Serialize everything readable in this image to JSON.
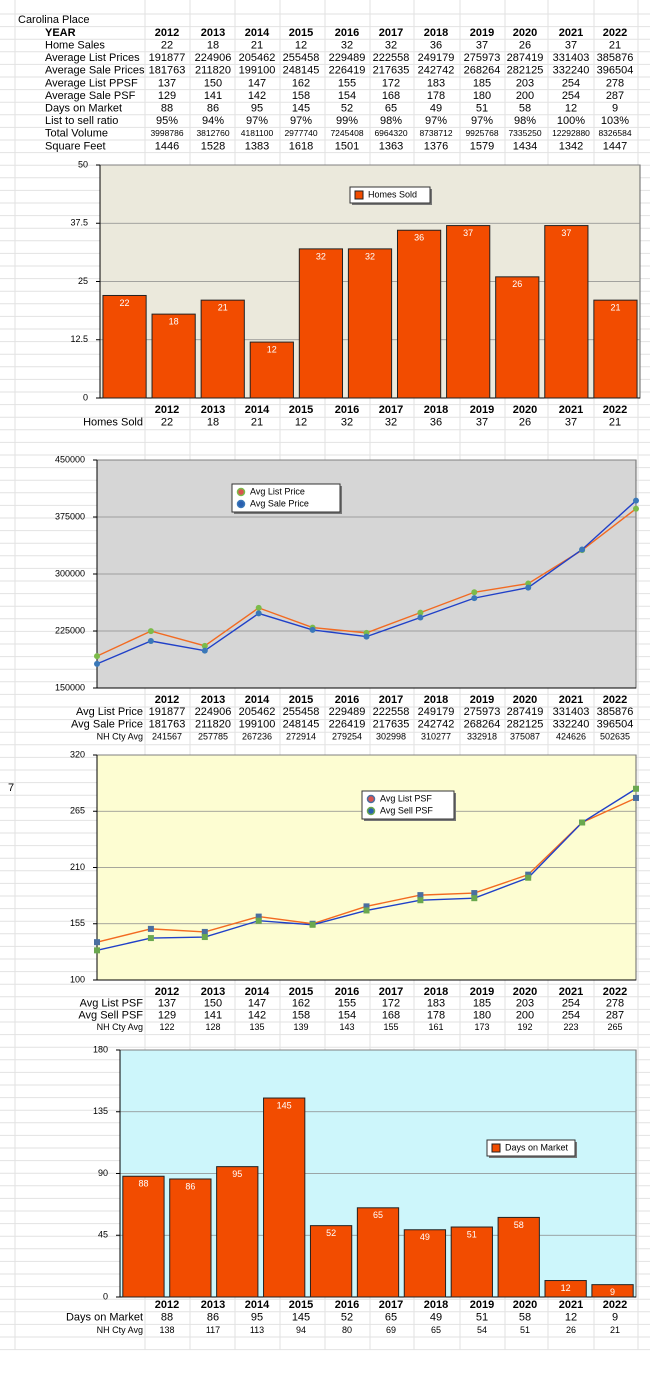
{
  "table": {
    "title": "Carolina Place",
    "header": [
      "YEAR",
      "2012",
      "2013",
      "2014",
      "2015",
      "2016",
      "2017",
      "2018",
      "2019",
      "2020",
      "2021",
      "2022"
    ],
    "rows": [
      [
        "Home Sales",
        22,
        18,
        21,
        12,
        32,
        32,
        36,
        37,
        26,
        37,
        21
      ],
      [
        "Average List Prices",
        191877,
        224906,
        205462,
        255458,
        229489,
        222558,
        249179,
        275973,
        287419,
        331403,
        385876
      ],
      [
        "Average Sale Prices",
        181763,
        211820,
        199100,
        248145,
        226419,
        217635,
        242742,
        268264,
        282125,
        332240,
        396504
      ],
      [
        "Average List PPSF",
        137,
        150,
        147,
        162,
        155,
        172,
        183,
        185,
        203,
        254,
        278
      ],
      [
        "Average Sale PSF",
        129,
        141,
        142,
        158,
        154,
        168,
        178,
        180,
        200,
        254,
        287
      ],
      [
        "Days on Market",
        88,
        86,
        95,
        145,
        52,
        65,
        49,
        51,
        58,
        12,
        9
      ],
      [
        "List to sell ratio",
        "95%",
        "94%",
        "97%",
        "97%",
        "99%",
        "98%",
        "97%",
        "97%",
        "98%",
        "100%",
        "103%"
      ],
      [
        "Total Volume",
        3998786,
        3812760,
        4181100,
        2977740,
        7245408,
        6964320,
        8738712,
        9925768,
        7335250,
        12292880,
        8326584
      ],
      [
        "Square Feet",
        1446,
        1528,
        1383,
        1618,
        1501,
        1363,
        1376,
        1579,
        1434,
        1342,
        1447
      ]
    ]
  },
  "side_cell": "7",
  "chart_data": [
    {
      "type": "bar",
      "categories": [
        "2012",
        "2013",
        "2014",
        "2015",
        "2016",
        "2017",
        "2018",
        "2019",
        "2020",
        "2021",
        "2022"
      ],
      "series": [
        {
          "name": "Homes Sold",
          "color": "#f24c00",
          "values": [
            22,
            18,
            21,
            12,
            32,
            32,
            36,
            37,
            26,
            37,
            21
          ]
        }
      ],
      "ylim": [
        0,
        50
      ],
      "yticks": [
        0,
        12.5,
        25,
        37.5,
        50
      ],
      "grid": true,
      "data_labels": true,
      "background": "#ebe9dc"
    },
    {
      "type": "line",
      "categories": [
        "2012",
        "2013",
        "2014",
        "2015",
        "2016",
        "2017",
        "2018",
        "2019",
        "2020",
        "2021",
        "2022"
      ],
      "series": [
        {
          "name": "Avg List Price",
          "color": "#f26a21",
          "marker_color": "#7cbb4a",
          "values": [
            191877,
            224906,
            205462,
            255458,
            229489,
            222558,
            249179,
            275973,
            287419,
            331403,
            385876
          ]
        },
        {
          "name": "Avg Sale Price",
          "color": "#2040c8",
          "marker_color": "#3a78b8",
          "values": [
            181763,
            211820,
            199100,
            248145,
            226419,
            217635,
            242742,
            268264,
            282125,
            332240,
            396504
          ]
        }
      ],
      "extra_rows": [
        {
          "name": "NH Cty Avg",
          "values": [
            241567,
            257785,
            267236,
            272914,
            279254,
            302998,
            310277,
            332918,
            375087,
            424626,
            502635
          ]
        }
      ],
      "ylim": [
        150000,
        450000
      ],
      "yticks": [
        150000,
        225000,
        300000,
        375000,
        450000
      ],
      "grid": true,
      "background": "#d6d6d6"
    },
    {
      "type": "line",
      "categories": [
        "2012",
        "2013",
        "2014",
        "2015",
        "2016",
        "2017",
        "2018",
        "2019",
        "2020",
        "2021",
        "2022"
      ],
      "series": [
        {
          "name": "Avg List PSF",
          "color": "#f26a21",
          "marker_color": "#4a6fa0",
          "values": [
            137,
            150,
            147,
            162,
            155,
            172,
            183,
            185,
            203,
            254,
            278
          ]
        },
        {
          "name": "Avg Sell PSF",
          "color": "#2040c8",
          "marker_color": "#6aa84f",
          "values": [
            129,
            141,
            142,
            158,
            154,
            168,
            178,
            180,
            200,
            254,
            287
          ]
        }
      ],
      "extra_rows": [
        {
          "name": "NH Cty Avg",
          "values": [
            122,
            128,
            135,
            139,
            143,
            155,
            161,
            173,
            192,
            223,
            265
          ]
        }
      ],
      "ylim": [
        100,
        320
      ],
      "yticks": [
        100,
        155,
        210,
        265,
        320
      ],
      "grid": true,
      "background": "#fdfdd2"
    },
    {
      "type": "bar",
      "categories": [
        "2012",
        "2013",
        "2014",
        "2015",
        "2016",
        "2017",
        "2018",
        "2019",
        "2020",
        "2021",
        "2022"
      ],
      "series": [
        {
          "name": "Days on Market",
          "color": "#f24c00",
          "values": [
            88,
            86,
            95,
            145,
            52,
            65,
            49,
            51,
            58,
            12,
            9
          ]
        }
      ],
      "extra_rows": [
        {
          "name": "NH Cty Avg",
          "values": [
            138,
            117,
            113,
            94,
            80,
            69,
            65,
            54,
            51,
            26,
            21
          ]
        }
      ],
      "ylim": [
        0,
        180
      ],
      "yticks": [
        0,
        45,
        90,
        135,
        180
      ],
      "grid": true,
      "data_labels": true,
      "background": "#cdf6fb"
    }
  ]
}
